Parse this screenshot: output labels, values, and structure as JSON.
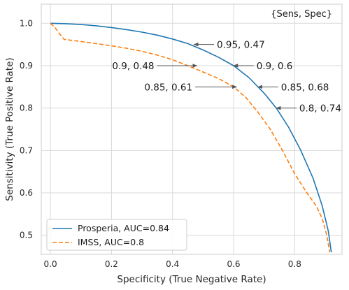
{
  "chart_data": {
    "type": "line",
    "title": "",
    "xlabel": "Specificity (True Negative Rate)",
    "ylabel": "Sensitivity (True Positive Rate)",
    "corner_note": "{Sens, Spec}",
    "xlim": [
      -0.03,
      0.955
    ],
    "ylim": [
      0.455,
      1.045
    ],
    "xticks": [
      0.0,
      0.2,
      0.4,
      0.6,
      0.8
    ],
    "xtick_labels": [
      "0.0",
      "0.2",
      "0.4",
      "0.6",
      "0.8"
    ],
    "yticks": [
      0.5,
      0.6,
      0.7,
      0.8,
      0.9,
      1.0
    ],
    "ytick_labels": [
      "0.5",
      "0.6",
      "0.7",
      "0.8",
      "0.9",
      "1.0"
    ],
    "grid": true,
    "legend_position": "lower-left",
    "series": [
      {
        "name": "Prosperia, AUC=0.84",
        "color": "#1f77b4",
        "dash": "solid",
        "points": [
          [
            0.0,
            1.0
          ],
          [
            0.05,
            0.999
          ],
          [
            0.1,
            0.997
          ],
          [
            0.15,
            0.994
          ],
          [
            0.2,
            0.99
          ],
          [
            0.25,
            0.985
          ],
          [
            0.3,
            0.979
          ],
          [
            0.35,
            0.972
          ],
          [
            0.4,
            0.963
          ],
          [
            0.45,
            0.952
          ],
          [
            0.5,
            0.937
          ],
          [
            0.55,
            0.92
          ],
          [
            0.6,
            0.9
          ],
          [
            0.65,
            0.872
          ],
          [
            0.7,
            0.835
          ],
          [
            0.74,
            0.8
          ],
          [
            0.78,
            0.755
          ],
          [
            0.82,
            0.7
          ],
          [
            0.86,
            0.635
          ],
          [
            0.89,
            0.57
          ],
          [
            0.91,
            0.51
          ],
          [
            0.92,
            0.46
          ]
        ]
      },
      {
        "name": "IMSS, AUC=0.8",
        "color": "#ff7f0e",
        "dash": "dashed",
        "points": [
          [
            0.0,
            1.0
          ],
          [
            0.015,
            0.99
          ],
          [
            0.03,
            0.975
          ],
          [
            0.045,
            0.962
          ],
          [
            0.1,
            0.957
          ],
          [
            0.15,
            0.952
          ],
          [
            0.2,
            0.947
          ],
          [
            0.25,
            0.941
          ],
          [
            0.3,
            0.934
          ],
          [
            0.35,
            0.925
          ],
          [
            0.4,
            0.914
          ],
          [
            0.45,
            0.9
          ],
          [
            0.5,
            0.885
          ],
          [
            0.55,
            0.87
          ],
          [
            0.6,
            0.85
          ],
          [
            0.64,
            0.825
          ],
          [
            0.68,
            0.79
          ],
          [
            0.72,
            0.75
          ],
          [
            0.76,
            0.7
          ],
          [
            0.8,
            0.645
          ],
          [
            0.84,
            0.6
          ],
          [
            0.87,
            0.57
          ],
          [
            0.89,
            0.54
          ],
          [
            0.905,
            0.5
          ],
          [
            0.915,
            0.46
          ]
        ]
      }
    ],
    "annotations": [
      {
        "text": "0.95, 0.47",
        "point": [
          0.47,
          0.95
        ],
        "text_at": [
          0.545,
          0.95
        ]
      },
      {
        "text": "0.9, 0.48",
        "point": [
          0.48,
          0.9
        ],
        "text_at": [
          0.34,
          0.9
        ]
      },
      {
        "text": "0.9, 0.6",
        "point": [
          0.6,
          0.9
        ],
        "text_at": [
          0.675,
          0.9
        ]
      },
      {
        "text": "0.85, 0.61",
        "point": [
          0.61,
          0.85
        ],
        "text_at": [
          0.465,
          0.85
        ]
      },
      {
        "text": "0.85, 0.68",
        "point": [
          0.68,
          0.85
        ],
        "text_at": [
          0.755,
          0.85
        ]
      },
      {
        "text": "0.8, 0.74",
        "point": [
          0.74,
          0.8
        ],
        "text_at": [
          0.815,
          0.8
        ]
      }
    ]
  }
}
